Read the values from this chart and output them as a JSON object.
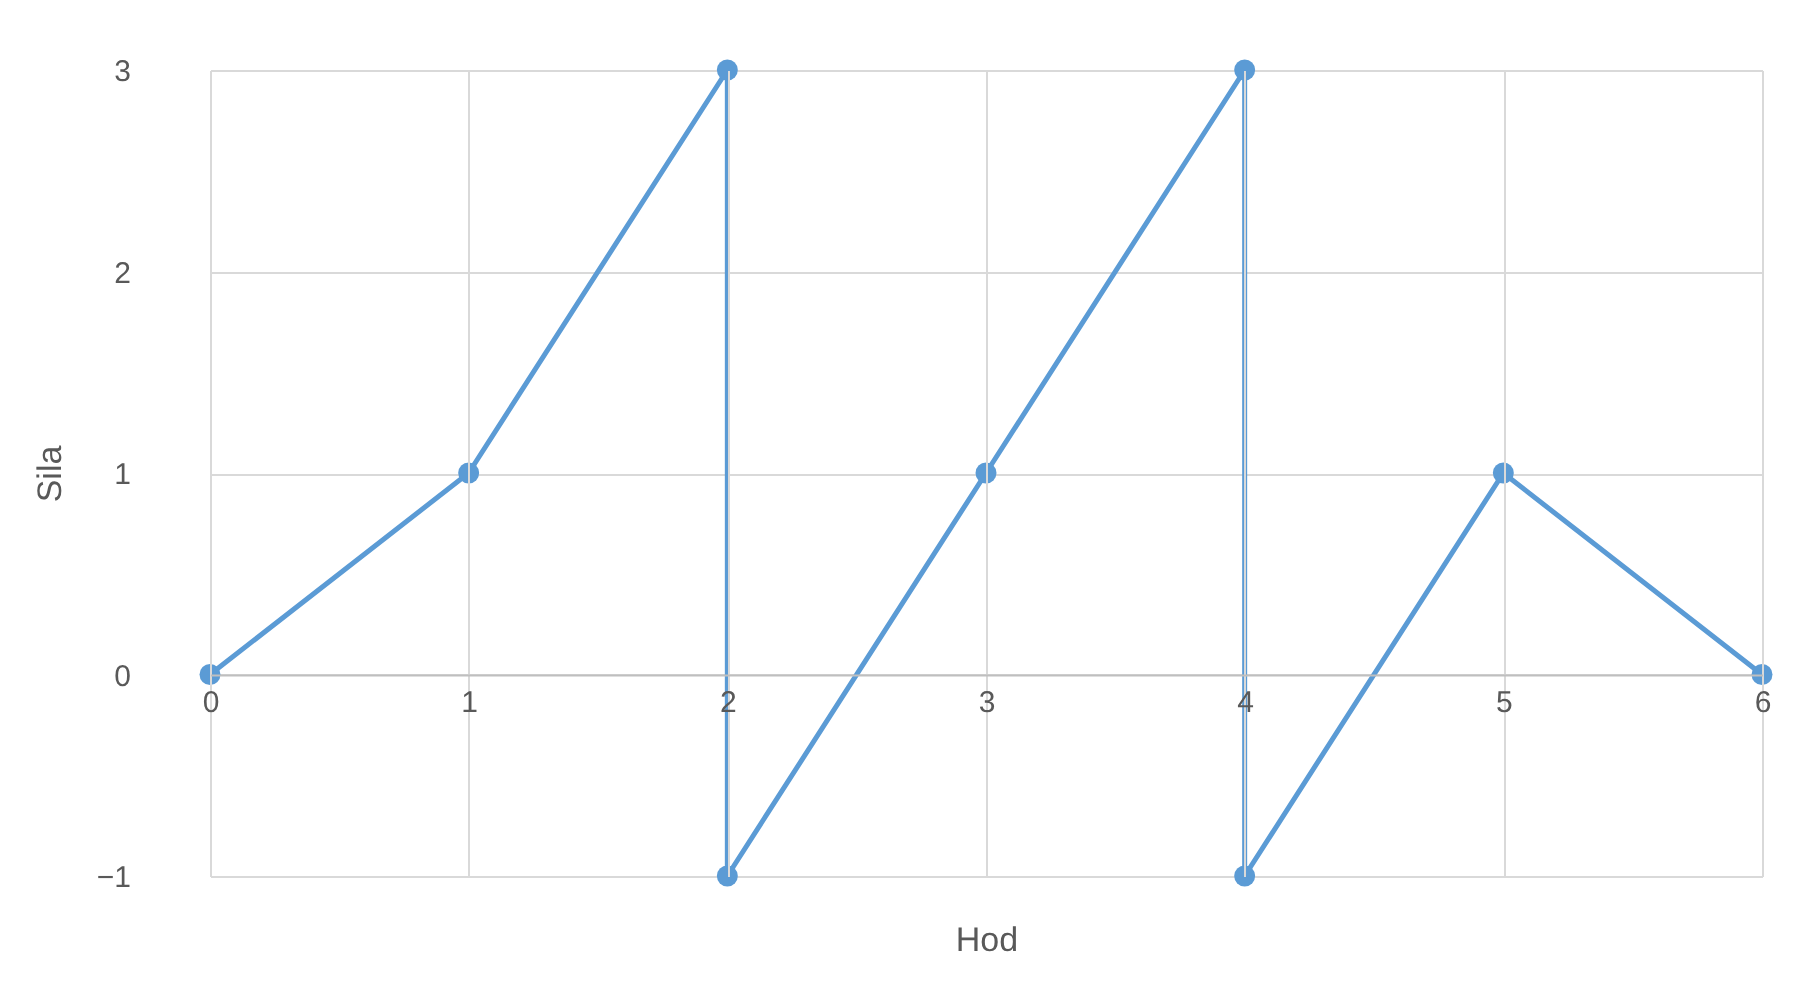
{
  "chart_data": {
    "type": "line",
    "xlabel": "Hod",
    "ylabel": "Sila",
    "x": [
      0,
      1,
      2,
      2,
      3,
      4,
      4,
      5,
      6
    ],
    "series": [
      {
        "color": "#5b9bd5",
        "values": [
          0,
          1,
          3,
          -1,
          1,
          3,
          -1,
          1,
          0
        ]
      }
    ],
    "xlim": [
      0,
      6
    ],
    "xticks": [
      0,
      1,
      2,
      3,
      4,
      5,
      6
    ],
    "ylim": [
      -1,
      3
    ],
    "yticks": [
      -1,
      0,
      1,
      2,
      3
    ],
    "grid": true,
    "marker": "circle",
    "line_style": "solid"
  }
}
